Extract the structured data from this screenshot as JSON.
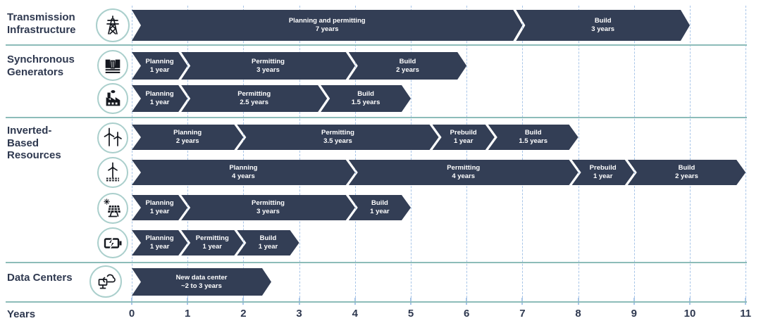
{
  "colors": {
    "bar": "#333e55",
    "bar_text": "#ffffff",
    "separator": "#8cbcb9",
    "gridline": "#a8c5e8",
    "icon_circle_border": "#aacfcc",
    "text_dark": "#2f3950",
    "background": "#ffffff"
  },
  "axis": {
    "label": "Years",
    "ticks": [
      0,
      1,
      2,
      3,
      4,
      5,
      6,
      7,
      8,
      9,
      10,
      11
    ],
    "min": 0,
    "max": 11
  },
  "chart_data": {
    "type": "gantt",
    "unit": "years",
    "x_label": "Years",
    "x_range": [
      0,
      11
    ],
    "grid": "vertical-dashed",
    "sections": [
      {
        "label": "Transmission Infrastructure",
        "label_lines": [
          "Transmission",
          "Infrastructure"
        ],
        "rows": [
          {
            "icon": "transmission-tower-icon",
            "segments": [
              {
                "phase": "Planning and permitting",
                "duration_label": "7 years",
                "start": 0,
                "end": 7
              },
              {
                "phase": "Build",
                "duration_label": "3 years",
                "start": 7,
                "end": 10
              }
            ]
          }
        ]
      },
      {
        "label": "Synchronous Generators",
        "label_lines": [
          "Synchronous",
          "Generators"
        ],
        "rows": [
          {
            "icon": "hydro-dam-icon",
            "segments": [
              {
                "phase": "Planning",
                "duration_label": "1 year",
                "start": 0,
                "end": 1
              },
              {
                "phase": "Permitting",
                "duration_label": "3 years",
                "start": 1,
                "end": 4
              },
              {
                "phase": "Build",
                "duration_label": "2 years",
                "start": 4,
                "end": 6
              }
            ]
          },
          {
            "icon": "factory-icon",
            "segments": [
              {
                "phase": "Planning",
                "duration_label": "1 year",
                "start": 0,
                "end": 1
              },
              {
                "phase": "Permitting",
                "duration_label": "2.5 years",
                "start": 1,
                "end": 3.5
              },
              {
                "phase": "Build",
                "duration_label": "1.5 years",
                "start": 3.5,
                "end": 5
              }
            ]
          }
        ]
      },
      {
        "label": "Inverted-Based Resources",
        "label_lines": [
          "Inverted-",
          "Based",
          "Resources"
        ],
        "rows": [
          {
            "icon": "onshore-wind-icon",
            "segments": [
              {
                "phase": "Planning",
                "duration_label": "2 years",
                "start": 0,
                "end": 2
              },
              {
                "phase": "Permitting",
                "duration_label": "3.5 years",
                "start": 2,
                "end": 5.5
              },
              {
                "phase": "Prebuild",
                "duration_label": "1 year",
                "start": 5.5,
                "end": 6.5
              },
              {
                "phase": "Build",
                "duration_label": "1.5 years",
                "start": 6.5,
                "end": 8
              }
            ]
          },
          {
            "icon": "offshore-wind-icon",
            "segments": [
              {
                "phase": "Planning",
                "duration_label": "4 years",
                "start": 0,
                "end": 4
              },
              {
                "phase": "Permitting",
                "duration_label": "4 years",
                "start": 4,
                "end": 8
              },
              {
                "phase": "Prebuild",
                "duration_label": "1 year",
                "start": 8,
                "end": 9
              },
              {
                "phase": "Build",
                "duration_label": "2 years",
                "start": 9,
                "end": 11
              }
            ]
          },
          {
            "icon": "solar-panel-icon",
            "segments": [
              {
                "phase": "Planning",
                "duration_label": "1 year",
                "start": 0,
                "end": 1
              },
              {
                "phase": "Permitting",
                "duration_label": "3 years",
                "start": 1,
                "end": 4
              },
              {
                "phase": "Build",
                "duration_label": "1 year",
                "start": 4,
                "end": 5
              }
            ]
          },
          {
            "icon": "battery-storage-icon",
            "segments": [
              {
                "phase": "Planning",
                "duration_label": "1 year",
                "start": 0,
                "end": 1
              },
              {
                "phase": "Permitting",
                "duration_label": "1 year",
                "start": 1,
                "end": 2
              },
              {
                "phase": "Build",
                "duration_label": "1 year",
                "start": 2,
                "end": 3
              }
            ]
          }
        ]
      },
      {
        "label": "Data Centers",
        "label_lines": [
          "Data Centers"
        ],
        "rows": [
          {
            "icon": "data-center-cloud-icon",
            "segments": [
              {
                "phase": "New data center",
                "duration_label": "~2 to 3 years",
                "start": 0,
                "end": 2.5
              }
            ]
          }
        ]
      }
    ]
  }
}
